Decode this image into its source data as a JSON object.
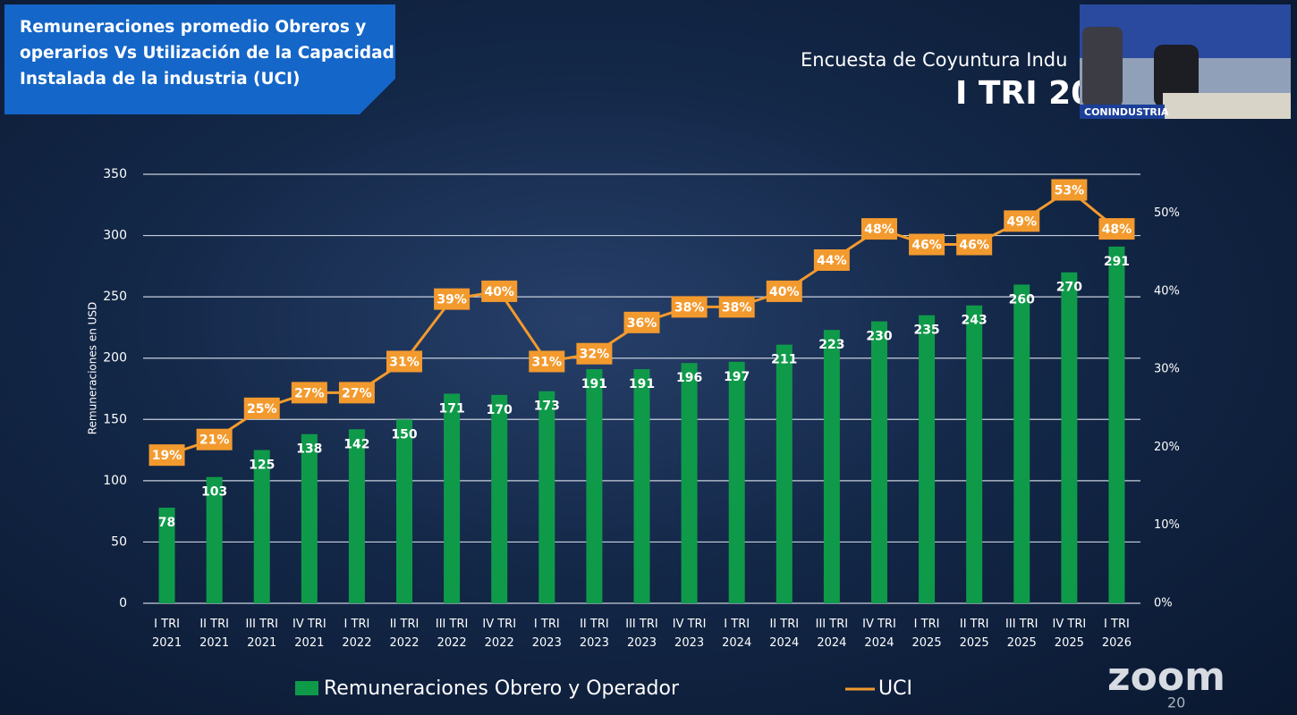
{
  "header": {
    "title": "Remuneraciones promedio Obreros y operarios Vs Utilización de la Capacidad Instalada de la industria (UCI)",
    "survey": "Encuesta de Coyuntura Indu",
    "period": "I TRI 20"
  },
  "webcam": {
    "label": "CONINDUSTRIA"
  },
  "zoom": {
    "logo": "zoom",
    "version": "20"
  },
  "chart_data": {
    "type": "bar_line",
    "ylabel": "Remuneraciones en USD",
    "categories": [
      "I TRI 2021",
      "II TRI 2021",
      "III TRI 2021",
      "IV TRI 2021",
      "I TRI 2022",
      "II TRI 2022",
      "III TRI 2022",
      "IV TRI 2022",
      "I TRI 2023",
      "II TRI 2023",
      "III TRI 2023",
      "IV TRI 2023",
      "I TRI 2024",
      "II TRI 2024",
      "III TRI 2024",
      "IV TRI 2024",
      "I TRI 2025",
      "II TRI 2025",
      "III TRI 2025",
      "IV TRI 2025",
      "I TRI 2026"
    ],
    "series": [
      {
        "name": "Remuneraciones Obrero y Operador",
        "type": "bar",
        "color": "#0f9a4a",
        "values": [
          78,
          103,
          125,
          138,
          142,
          150,
          171,
          170,
          173,
          191,
          191,
          196,
          197,
          211,
          223,
          230,
          235,
          243,
          260,
          270,
          291
        ]
      },
      {
        "name": "UCI",
        "type": "line",
        "axis": "y2",
        "color": "#f39a2e",
        "values": [
          19,
          21,
          25,
          27,
          27,
          31,
          39,
          40,
          31,
          32,
          36,
          38,
          38,
          40,
          44,
          48,
          46,
          46,
          49,
          53,
          48
        ],
        "value_labels": [
          "19%",
          "21%",
          "25%",
          "27%",
          "27%",
          "31%",
          "39%",
          "40%",
          "31%",
          "32%",
          "36%",
          "38%",
          "38%",
          "40%",
          "44%",
          "48%",
          "46%",
          "46%",
          "49%",
          "53%",
          "48%"
        ]
      }
    ],
    "ylim": [
      0,
      350
    ],
    "yticks": [
      0,
      50,
      100,
      150,
      200,
      250,
      300,
      350
    ],
    "y2lim": [
      0,
      55
    ],
    "y2ticks": [
      {
        "value": 0,
        "label": "0%"
      },
      {
        "value": 10,
        "label": "10%"
      },
      {
        "value": 20,
        "label": "20%"
      },
      {
        "value": 30,
        "label": "30%"
      },
      {
        "value": 40,
        "label": "40%"
      },
      {
        "value": 50,
        "label": "50%"
      }
    ],
    "grid": true
  }
}
